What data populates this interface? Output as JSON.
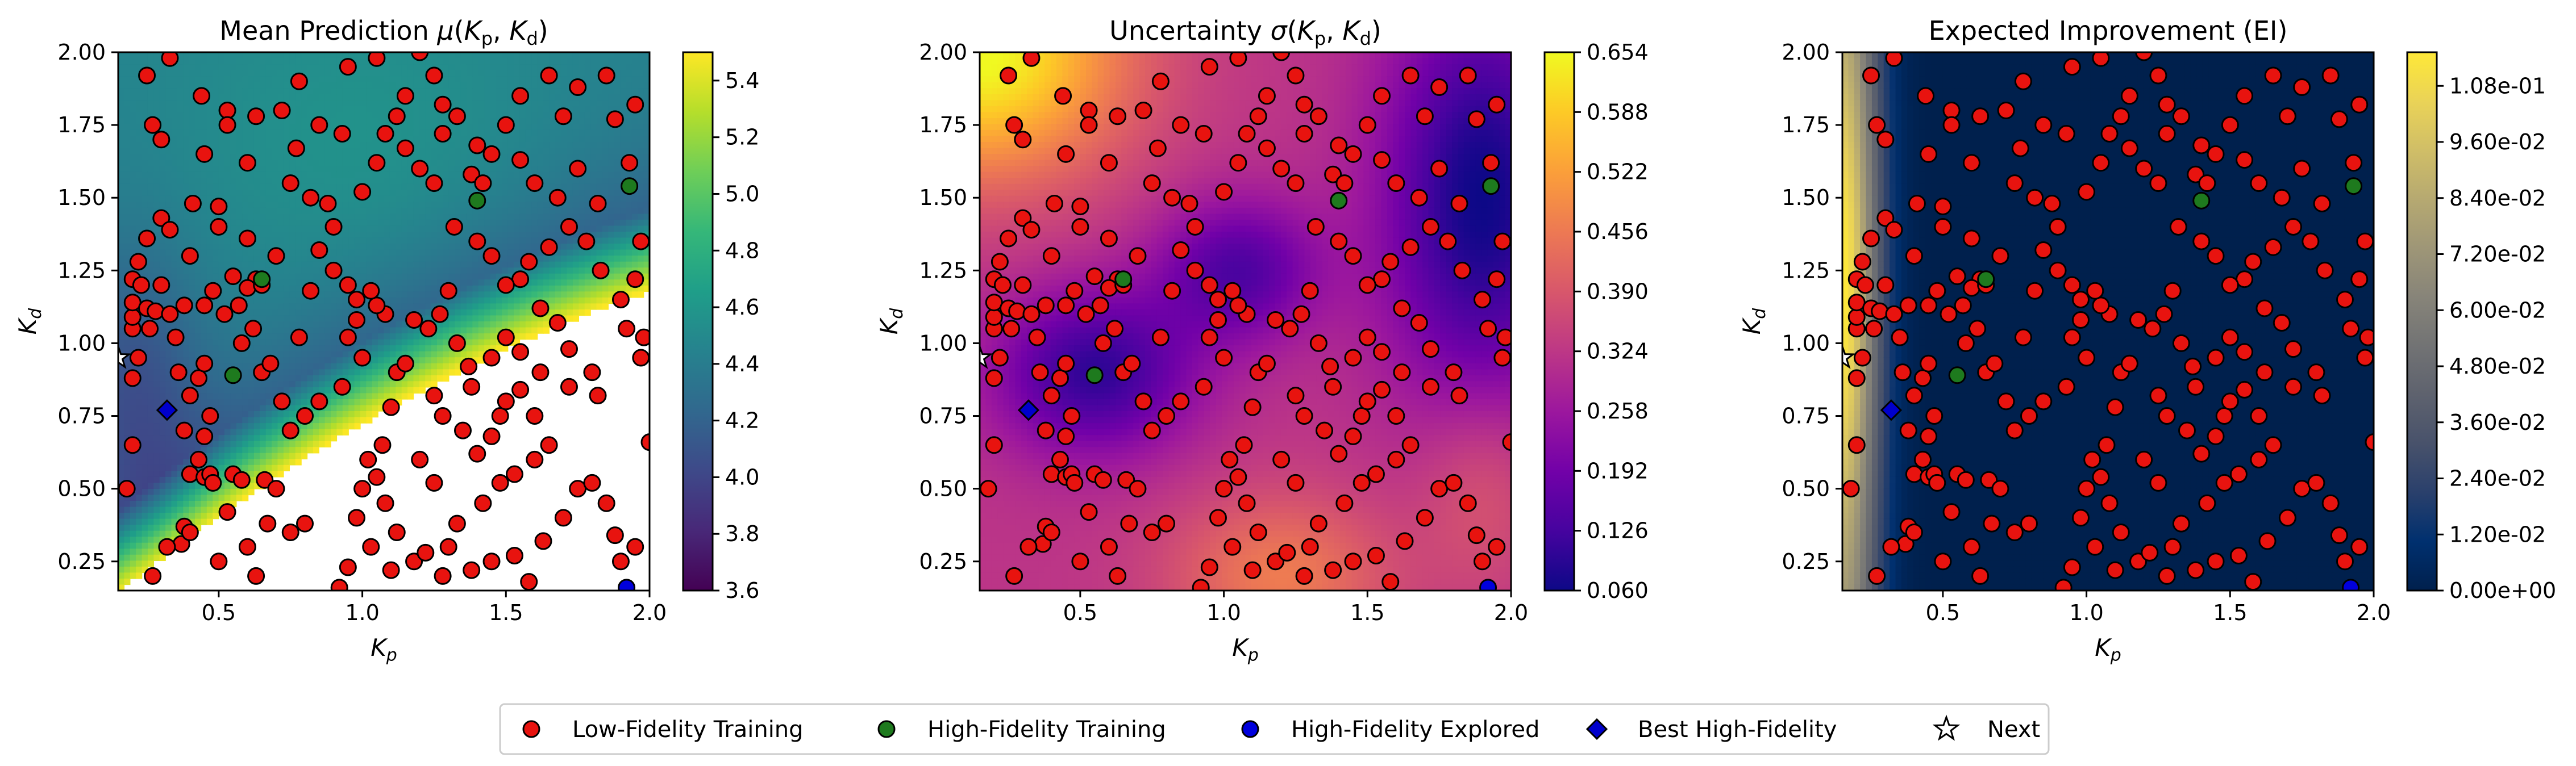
{
  "figure": {
    "panel_titles": [
      "Mean Prediction μ(Kp,Kd)",
      "Uncertainty σ(Kp,Kd)",
      "Expected Improvement (EI)"
    ],
    "xlabel": "Kp",
    "ylabel": "Kd"
  },
  "legend": {
    "items": [
      {
        "label": "Low-Fidelity Training",
        "marker": "circle",
        "color": "#e8130f"
      },
      {
        "label": "High-Fidelity Training",
        "marker": "circle",
        "color": "#1e7a1e"
      },
      {
        "label": "High-Fidelity Explored",
        "marker": "circle",
        "color": "#0000dd"
      },
      {
        "label": "Best High-Fidelity",
        "marker": "diamond",
        "color": "#0000cc"
      },
      {
        "label": "Next",
        "marker": "star",
        "color": "#ffffff"
      }
    ]
  },
  "chart_data": [
    {
      "type": "heatmap",
      "title": "Mean Prediction μ(Kp,Kd)",
      "xlabel": "Kp",
      "ylabel": "Kd",
      "xlim": [
        0.15,
        2.0
      ],
      "ylim": [
        0.15,
        2.0
      ],
      "xticks": [
        "0.5",
        "1.0",
        "1.5",
        "2.0"
      ],
      "yticks": [
        "0.25",
        "0.50",
        "0.75",
        "1.00",
        "1.25",
        "1.50",
        "1.75",
        "2.00"
      ],
      "colorbar": {
        "colormap": "viridis",
        "range": [
          3.6,
          5.5
        ],
        "ticks": [
          "3.6",
          "3.8",
          "4.0",
          "4.2",
          "4.4",
          "4.6",
          "4.8",
          "5.0",
          "5.2",
          "5.4"
        ]
      }
    },
    {
      "type": "heatmap",
      "title": "Uncertainty σ(Kp,Kd)",
      "xlabel": "Kp",
      "ylabel": "Kd",
      "xlim": [
        0.15,
        2.0
      ],
      "ylim": [
        0.15,
        2.0
      ],
      "xticks": [
        "0.5",
        "1.0",
        "1.5",
        "2.0"
      ],
      "yticks": [
        "0.25",
        "0.50",
        "0.75",
        "1.00",
        "1.25",
        "1.50",
        "1.75",
        "2.00"
      ],
      "colorbar": {
        "colormap": "plasma",
        "range": [
          0.06,
          0.654
        ],
        "ticks": [
          "0.060",
          "0.126",
          "0.192",
          "0.258",
          "0.324",
          "0.390",
          "0.456",
          "0.522",
          "0.588",
          "0.654"
        ]
      }
    },
    {
      "type": "heatmap",
      "title": "Expected Improvement (EI)",
      "xlabel": "Kp",
      "ylabel": "Kd",
      "xlim": [
        0.15,
        2.0
      ],
      "ylim": [
        0.15,
        2.0
      ],
      "xticks": [
        "0.5",
        "1.0",
        "1.5",
        "2.0"
      ],
      "yticks": [
        "0.25",
        "0.50",
        "0.75",
        "1.00",
        "1.25",
        "1.50",
        "1.75",
        "2.00"
      ],
      "colorbar": {
        "colormap": "cividis",
        "range": [
          0.0,
          0.1152
        ],
        "ticks": [
          "0.00e+00",
          "1.20e-02",
          "2.40e-02",
          "3.60e-02",
          "4.80e-02",
          "6.00e-02",
          "7.20e-02",
          "8.40e-02",
          "9.60e-02",
          "1.08e-01"
        ]
      }
    }
  ],
  "points": {
    "low_fidelity": [
      [
        0.18,
        0.5
      ],
      [
        0.2,
        0.65
      ],
      [
        0.2,
        0.88
      ],
      [
        0.22,
        0.95
      ],
      [
        0.2,
        1.05
      ],
      [
        0.2,
        1.09
      ],
      [
        0.2,
        1.14
      ],
      [
        0.2,
        1.22
      ],
      [
        0.23,
        1.2
      ],
      [
        0.22,
        1.28
      ],
      [
        0.25,
        1.12
      ],
      [
        0.26,
        1.05
      ],
      [
        0.28,
        1.11
      ],
      [
        0.3,
        1.2
      ],
      [
        0.25,
        1.36
      ],
      [
        0.27,
        1.75
      ],
      [
        0.25,
        1.92
      ],
      [
        0.3,
        1.7
      ],
      [
        0.33,
        1.98
      ],
      [
        0.3,
        1.43
      ],
      [
        0.33,
        1.39
      ],
      [
        0.38,
        1.13
      ],
      [
        0.35,
        1.02
      ],
      [
        0.4,
        1.3
      ],
      [
        0.33,
        1.1
      ],
      [
        0.36,
        0.9
      ],
      [
        0.4,
        0.82
      ],
      [
        0.43,
        0.88
      ],
      [
        0.38,
        0.7
      ],
      [
        0.43,
        0.6
      ],
      [
        0.45,
        1.65
      ],
      [
        0.44,
        1.85
      ],
      [
        0.53,
        1.8
      ],
      [
        0.41,
        1.48
      ],
      [
        0.5,
        1.47
      ],
      [
        0.5,
        1.4
      ],
      [
        0.45,
        1.13
      ],
      [
        0.52,
        1.1
      ],
      [
        0.55,
        1.23
      ],
      [
        0.6,
        1.36
      ],
      [
        0.57,
        1.13
      ],
      [
        0.63,
        1.22
      ],
      [
        0.6,
        1.19
      ],
      [
        0.65,
        1.2
      ],
      [
        0.63,
        1.78
      ],
      [
        0.6,
        1.62
      ],
      [
        0.53,
        1.75
      ],
      [
        0.48,
        1.18
      ],
      [
        0.45,
        0.93
      ],
      [
        0.47,
        0.75
      ],
      [
        0.45,
        0.68
      ],
      [
        0.4,
        0.55
      ],
      [
        0.37,
        0.31
      ],
      [
        0.38,
        0.37
      ],
      [
        0.45,
        0.54
      ],
      [
        0.47,
        0.55
      ],
      [
        0.48,
        0.52
      ],
      [
        0.53,
        0.42
      ],
      [
        0.55,
        0.55
      ],
      [
        0.58,
        0.53
      ],
      [
        0.6,
        0.3
      ],
      [
        0.63,
        0.2
      ],
      [
        0.66,
        0.53
      ],
      [
        0.65,
        0.9
      ],
      [
        0.68,
        0.93
      ],
      [
        0.7,
        1.3
      ],
      [
        0.75,
        1.55
      ],
      [
        0.77,
        1.67
      ],
      [
        0.72,
        1.8
      ],
      [
        0.78,
        1.9
      ],
      [
        0.85,
        1.75
      ],
      [
        0.82,
        1.5
      ],
      [
        0.88,
        1.48
      ],
      [
        0.85,
        1.32
      ],
      [
        0.9,
        1.4
      ],
      [
        0.95,
        1.2
      ],
      [
        0.98,
        1.15
      ],
      [
        0.95,
        1.02
      ],
      [
        0.98,
        1.08
      ],
      [
        1.0,
        0.95
      ],
      [
        0.93,
        0.85
      ],
      [
        0.85,
        0.8
      ],
      [
        0.8,
        0.75
      ],
      [
        0.75,
        0.7
      ],
      [
        0.72,
        0.8
      ],
      [
        0.7,
        0.5
      ],
      [
        0.67,
        0.38
      ],
      [
        0.75,
        0.35
      ],
      [
        0.8,
        0.38
      ],
      [
        0.92,
        0.16
      ],
      [
        0.95,
        0.23
      ],
      [
        0.98,
        0.4
      ],
      [
        1.0,
        0.5
      ],
      [
        1.02,
        0.6
      ],
      [
        1.05,
        0.54
      ],
      [
        1.07,
        0.65
      ],
      [
        1.1,
        0.78
      ],
      [
        1.12,
        0.9
      ],
      [
        1.15,
        0.93
      ],
      [
        1.18,
        1.08
      ],
      [
        1.08,
        1.1
      ],
      [
        1.05,
        1.13
      ],
      [
        1.03,
        1.18
      ],
      [
        1.0,
        1.52
      ],
      [
        1.05,
        1.62
      ],
      [
        1.08,
        1.72
      ],
      [
        1.12,
        1.78
      ],
      [
        1.15,
        1.67
      ],
      [
        1.2,
        1.6
      ],
      [
        1.25,
        1.55
      ],
      [
        1.28,
        1.72
      ],
      [
        1.33,
        1.78
      ],
      [
        1.32,
        1.4
      ],
      [
        1.4,
        1.35
      ],
      [
        1.45,
        1.3
      ],
      [
        1.3,
        1.18
      ],
      [
        1.27,
        1.1
      ],
      [
        1.23,
        1.05
      ],
      [
        1.33,
        1.0
      ],
      [
        1.37,
        0.92
      ],
      [
        1.38,
        0.85
      ],
      [
        1.25,
        0.82
      ],
      [
        1.28,
        0.75
      ],
      [
        1.35,
        0.7
      ],
      [
        1.4,
        0.62
      ],
      [
        1.45,
        0.68
      ],
      [
        1.48,
        0.75
      ],
      [
        1.5,
        0.8
      ],
      [
        1.55,
        0.84
      ],
      [
        1.6,
        0.75
      ],
      [
        1.65,
        0.65
      ],
      [
        1.6,
        0.6
      ],
      [
        1.53,
        0.55
      ],
      [
        1.48,
        0.52
      ],
      [
        1.42,
        0.45
      ],
      [
        1.33,
        0.38
      ],
      [
        1.3,
        0.3
      ],
      [
        1.38,
        0.22
      ],
      [
        1.45,
        0.25
      ],
      [
        1.53,
        0.27
      ],
      [
        1.58,
        0.18
      ],
      [
        1.63,
        0.32
      ],
      [
        1.7,
        0.4
      ],
      [
        1.75,
        0.5
      ],
      [
        1.8,
        0.52
      ],
      [
        1.85,
        0.45
      ],
      [
        1.88,
        0.34
      ],
      [
        1.9,
        0.25
      ],
      [
        1.95,
        0.3
      ],
      [
        2.0,
        0.66
      ],
      [
        1.82,
        0.82
      ],
      [
        1.8,
        0.9
      ],
      [
        1.72,
        0.98
      ],
      [
        1.68,
        1.07
      ],
      [
        1.62,
        1.12
      ],
      [
        1.55,
        1.22
      ],
      [
        1.5,
        1.2
      ],
      [
        1.58,
        1.28
      ],
      [
        1.65,
        1.33
      ],
      [
        1.72,
        1.4
      ],
      [
        1.78,
        1.35
      ],
      [
        1.83,
        1.25
      ],
      [
        1.9,
        1.15
      ],
      [
        1.92,
        1.05
      ],
      [
        1.97,
        0.95
      ],
      [
        1.98,
        1.02
      ],
      [
        1.95,
        1.22
      ],
      [
        1.97,
        1.35
      ],
      [
        1.93,
        1.62
      ],
      [
        1.88,
        1.77
      ],
      [
        1.95,
        1.82
      ],
      [
        1.85,
        1.92
      ],
      [
        1.75,
        1.88
      ],
      [
        1.7,
        1.78
      ],
      [
        1.65,
        1.92
      ],
      [
        1.55,
        1.85
      ],
      [
        1.5,
        1.75
      ],
      [
        1.45,
        1.65
      ],
      [
        1.4,
        1.68
      ],
      [
        1.38,
        1.58
      ],
      [
        1.42,
        1.55
      ],
      [
        1.55,
        1.63
      ],
      [
        1.6,
        1.55
      ],
      [
        1.68,
        1.5
      ],
      [
        1.75,
        1.6
      ],
      [
        1.82,
        1.48
      ],
      [
        1.28,
        1.82
      ],
      [
        1.25,
        1.92
      ],
      [
        1.2,
        2.0
      ],
      [
        1.15,
        1.85
      ],
      [
        1.05,
        1.98
      ],
      [
        0.95,
        1.95
      ],
      [
        0.93,
        1.72
      ],
      [
        0.9,
        1.25
      ],
      [
        0.82,
        1.18
      ],
      [
        0.78,
        1.02
      ],
      [
        0.62,
        1.05
      ],
      [
        0.58,
        1.0
      ],
      [
        1.08,
        0.45
      ],
      [
        1.12,
        0.35
      ],
      [
        1.18,
        0.25
      ],
      [
        1.22,
        0.28
      ],
      [
        1.28,
        0.2
      ],
      [
        1.1,
        0.22
      ],
      [
        1.03,
        0.3
      ],
      [
        1.25,
        0.52
      ],
      [
        1.2,
        0.6
      ],
      [
        1.5,
        1.02
      ],
      [
        1.55,
        0.97
      ],
      [
        1.45,
        0.95
      ],
      [
        1.62,
        0.9
      ],
      [
        1.72,
        0.85
      ],
      [
        0.4,
        0.35
      ],
      [
        0.32,
        0.3
      ],
      [
        0.27,
        0.2
      ],
      [
        0.5,
        0.25
      ]
    ],
    "high_fidelity_training": [
      [
        0.55,
        0.89
      ],
      [
        0.65,
        1.22
      ],
      [
        1.4,
        1.49
      ],
      [
        1.93,
        1.54
      ]
    ],
    "high_fidelity_explored": [
      [
        1.92,
        0.16
      ]
    ],
    "best_high_fidelity": [
      [
        0.32,
        0.77
      ]
    ],
    "next": [
      [
        0.15,
        0.95
      ]
    ]
  },
  "colors": {
    "low_fidelity": "#e8130f",
    "high_fidelity_training": "#1e7a1e",
    "high_fidelity_explored": "#0000dd",
    "best_high_fidelity": "#0000cc",
    "next": "#ffffff"
  }
}
